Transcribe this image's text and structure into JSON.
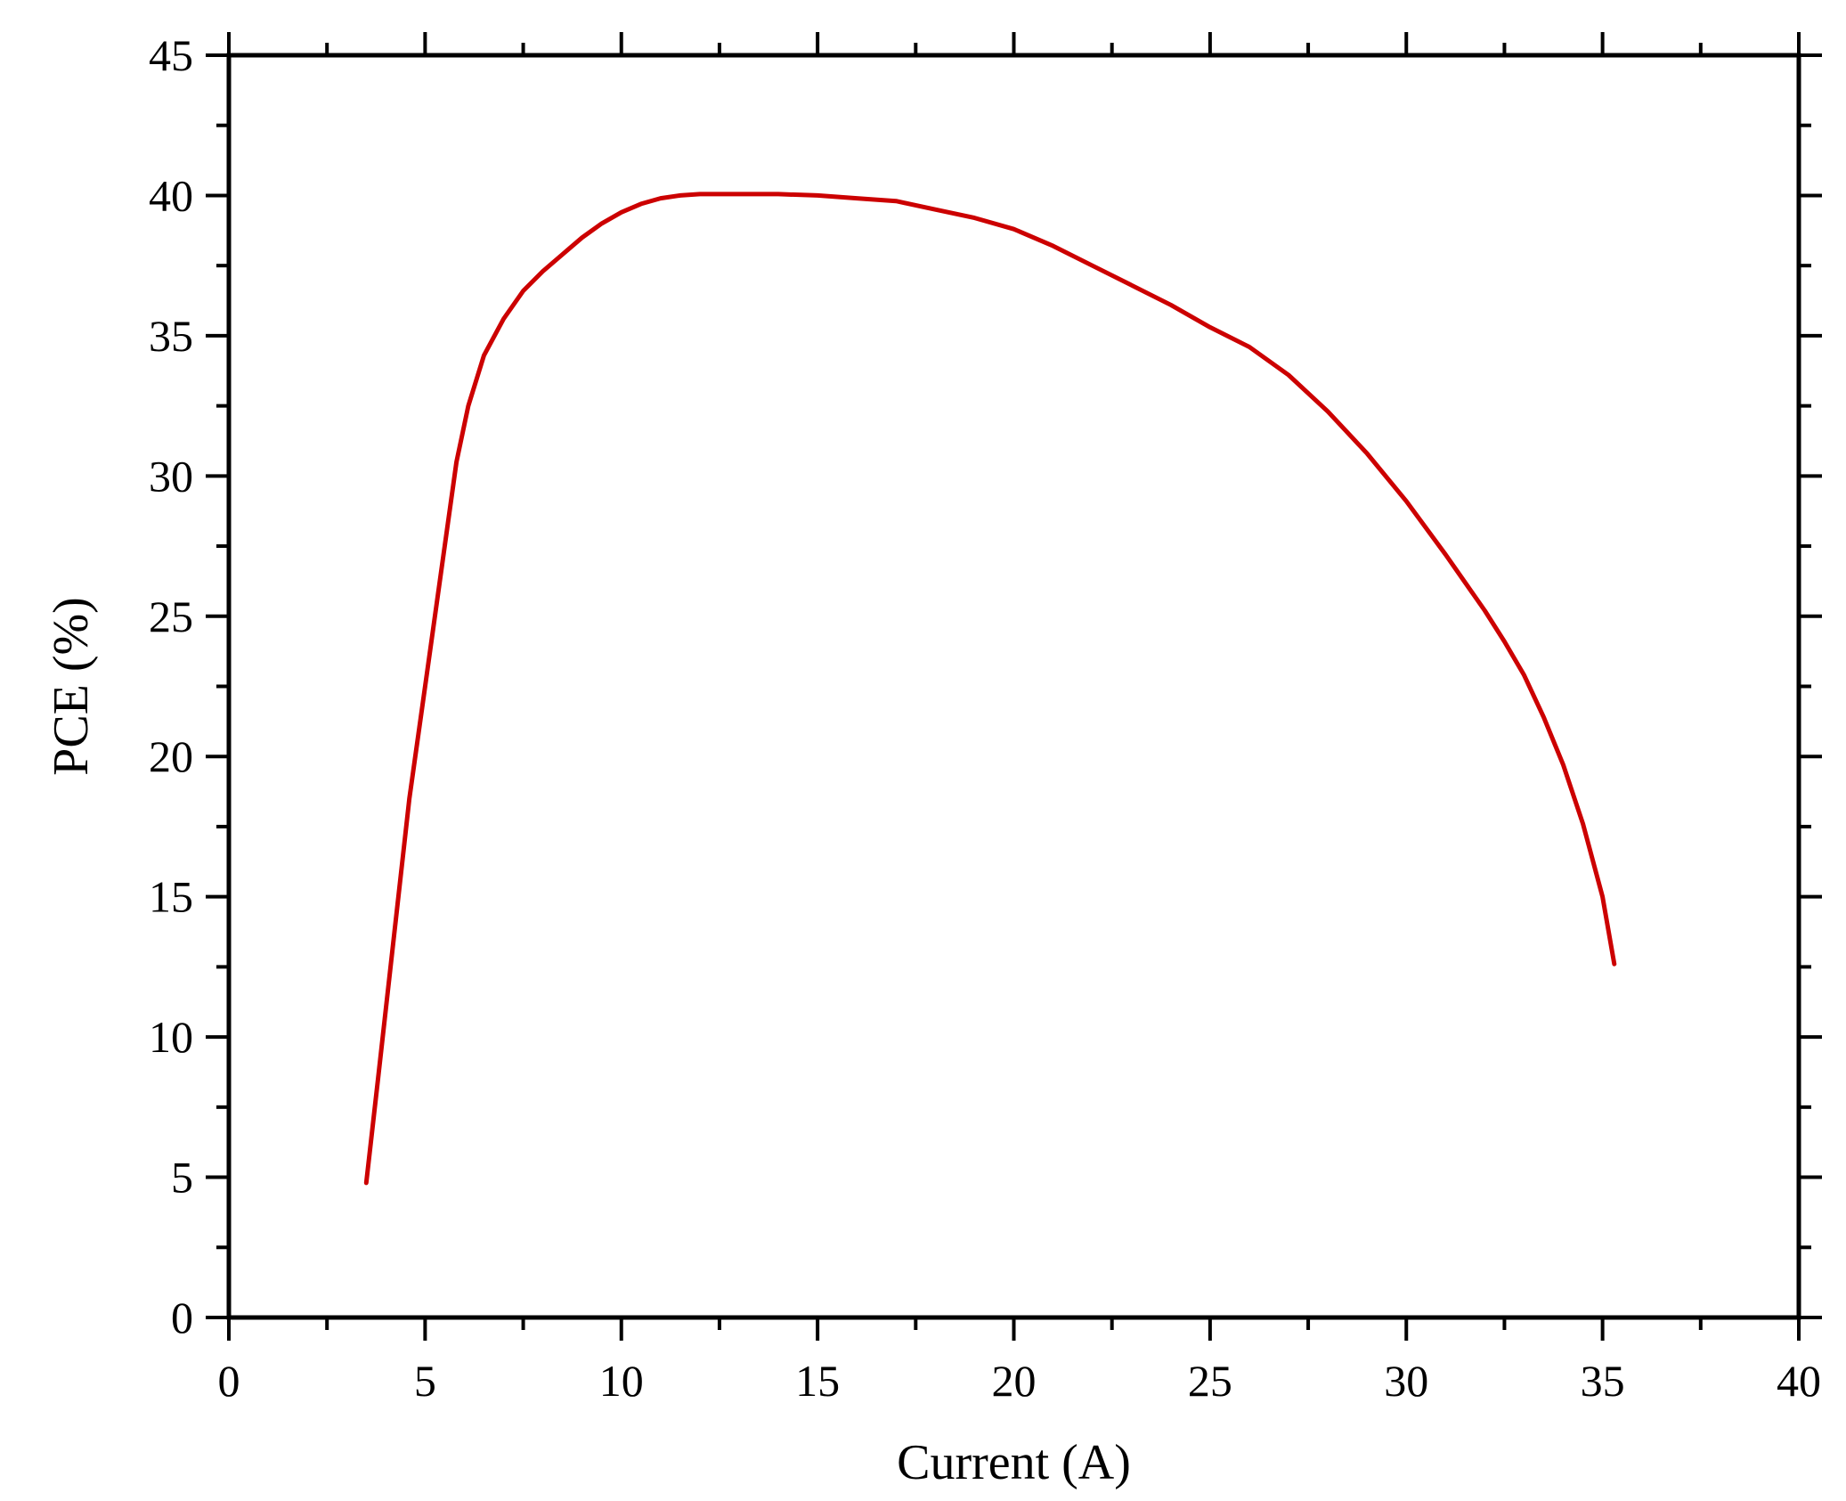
{
  "chart_data": {
    "type": "line",
    "title": "",
    "xlabel": "Current (A)",
    "ylabel": "PCE (%)",
    "xlim": [
      0,
      40
    ],
    "ylim": [
      0,
      45
    ],
    "x_ticks": [
      0,
      5,
      10,
      15,
      20,
      25,
      30,
      35,
      40
    ],
    "y_ticks": [
      0,
      5,
      10,
      15,
      20,
      25,
      30,
      35,
      40,
      45
    ],
    "grid": false,
    "legend": "none",
    "series": [
      {
        "color": "#cc0000",
        "x": [
          3.5,
          3.8,
          4.2,
          4.6,
          5.0,
          5.4,
          5.8,
          6.1,
          6.5,
          7.0,
          7.5,
          8.0,
          8.5,
          9.0,
          9.5,
          10.0,
          10.5,
          11.0,
          11.5,
          12.0,
          13.0,
          14.0,
          15.0,
          16.0,
          17.0,
          18.0,
          19.0,
          20.0,
          21.0,
          22.0,
          23.0,
          24.0,
          25.0,
          26.0,
          27.0,
          28.0,
          29.0,
          30.0,
          31.0,
          32.0,
          32.5,
          33.0,
          33.5,
          34.0,
          34.5,
          35.0,
          35.3
        ],
        "y": [
          4.8,
          8.5,
          13.5,
          18.5,
          22.5,
          26.5,
          30.5,
          32.5,
          34.3,
          35.6,
          36.6,
          37.3,
          37.9,
          38.5,
          39.0,
          39.4,
          39.7,
          39.9,
          40.0,
          40.05,
          40.05,
          40.05,
          40.0,
          39.9,
          39.8,
          39.5,
          39.2,
          38.8,
          38.2,
          37.5,
          36.8,
          36.1,
          35.3,
          34.6,
          33.6,
          32.3,
          30.8,
          29.1,
          27.2,
          25.2,
          24.1,
          22.9,
          21.4,
          19.7,
          17.6,
          15.0,
          12.6
        ]
      }
    ]
  }
}
